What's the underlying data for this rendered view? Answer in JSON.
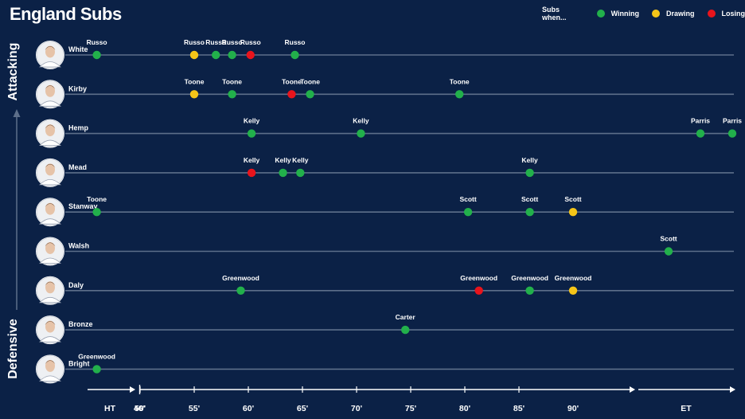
{
  "title": "England Subs",
  "legend": {
    "title": "Subs when...",
    "items": [
      {
        "key": "winning",
        "label": "Winning",
        "color": "#22b04b"
      },
      {
        "key": "drawing",
        "label": "Drawing",
        "color": "#f5c518"
      },
      {
        "key": "losing",
        "label": "Losing",
        "color": "#e8141c"
      }
    ]
  },
  "y_axis": {
    "top_label": "Attacking",
    "bottom_label": "Defensive"
  },
  "colors": {
    "background": "#0b2146",
    "line": "#5d6f8a",
    "text": "#ffffff"
  },
  "chart_data": {
    "type": "scatter",
    "x_ticks": [
      "HT",
      "46'",
      "50'",
      "55'",
      "60'",
      "65'",
      "70'",
      "75'",
      "80'",
      "85'",
      "90'",
      "ET"
    ],
    "rows": [
      {
        "player": "White",
        "subs": [
          {
            "minute": 46,
            "replacement": "Russo",
            "state": "winning"
          },
          {
            "minute": 55,
            "replacement": "Russo",
            "state": "drawing"
          },
          {
            "minute": 57,
            "replacement": "Russo",
            "state": "winning"
          },
          {
            "minute": 58.5,
            "replacement": "Russo",
            "state": "winning"
          },
          {
            "minute": 60.2,
            "replacement": "Russo",
            "state": "losing"
          },
          {
            "minute": 64.3,
            "replacement": "Russo",
            "state": "winning"
          }
        ]
      },
      {
        "player": "Kirby",
        "subs": [
          {
            "minute": 55,
            "replacement": "Toone",
            "state": "drawing"
          },
          {
            "minute": 58.5,
            "replacement": "Toone",
            "state": "winning"
          },
          {
            "minute": 64,
            "replacement": "Toone",
            "state": "losing"
          },
          {
            "minute": 65.7,
            "replacement": "Toone",
            "state": "winning"
          },
          {
            "minute": 79.5,
            "replacement": "Toone",
            "state": "winning"
          }
        ]
      },
      {
        "player": "Hemp",
        "subs": [
          {
            "minute": 60.3,
            "replacement": "Kelly",
            "state": "winning"
          },
          {
            "minute": 70.4,
            "replacement": "Kelly",
            "state": "winning"
          },
          {
            "minute": 98,
            "replacement": "Parris",
            "state": "winning"
          },
          {
            "minute": 100,
            "replacement": "Parris",
            "state": "winning"
          }
        ]
      },
      {
        "player": "Mead",
        "subs": [
          {
            "minute": 60.3,
            "replacement": "Kelly",
            "state": "losing"
          },
          {
            "minute": 63.2,
            "replacement": "Kelly",
            "state": "winning"
          },
          {
            "minute": 64.8,
            "replacement": "Kelly",
            "state": "winning"
          },
          {
            "minute": 86,
            "replacement": "Kelly",
            "state": "winning"
          }
        ]
      },
      {
        "player": "Stanway",
        "subs": [
          {
            "minute": 46,
            "replacement": "Toone",
            "state": "winning"
          },
          {
            "minute": 80.3,
            "replacement": "Scott",
            "state": "winning"
          },
          {
            "minute": 86,
            "replacement": "Scott",
            "state": "winning"
          },
          {
            "minute": 90,
            "replacement": "Scott",
            "state": "drawing"
          }
        ]
      },
      {
        "player": "Walsh",
        "subs": [
          {
            "minute": 96,
            "replacement": "Scott",
            "state": "winning"
          }
        ]
      },
      {
        "player": "Daly",
        "subs": [
          {
            "minute": 59.3,
            "replacement": "Greenwood",
            "state": "winning"
          },
          {
            "minute": 81.3,
            "replacement": "Greenwood",
            "state": "losing"
          },
          {
            "minute": 86,
            "replacement": "Greenwood",
            "state": "winning"
          },
          {
            "minute": 90,
            "replacement": "Greenwood",
            "state": "drawing"
          }
        ]
      },
      {
        "player": "Bronze",
        "subs": [
          {
            "minute": 74.5,
            "replacement": "Carter",
            "state": "winning"
          }
        ]
      },
      {
        "player": "Bright",
        "subs": [
          {
            "minute": 46,
            "replacement": "Greenwood",
            "state": "winning"
          }
        ]
      }
    ]
  }
}
